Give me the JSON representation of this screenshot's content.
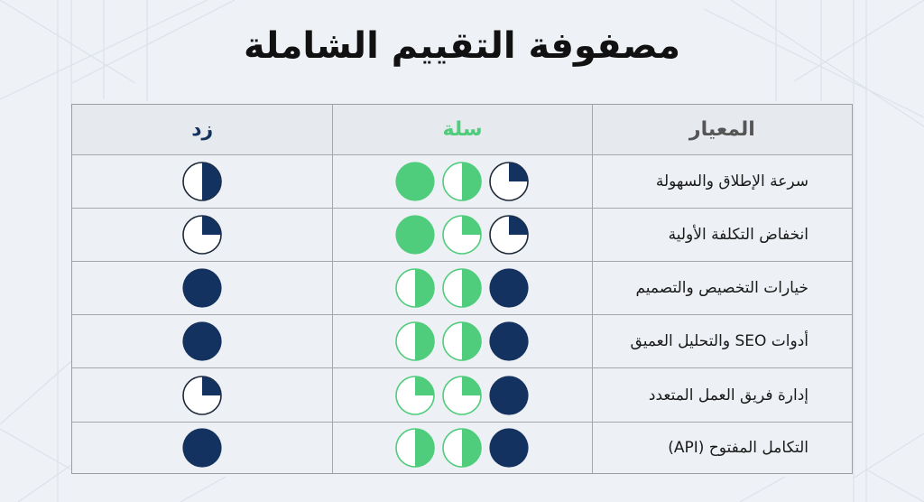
{
  "title": "مصفوفة التقييم الشاملة",
  "colors": {
    "salla_green": "#4fcc7c",
    "zid_navy": "#14325f",
    "criterion_header": "#555555",
    "title": "#111111",
    "background": "#eef1f5"
  },
  "table": {
    "headers": {
      "criterion": "المعيار",
      "salla": "سلة",
      "zid": "زد"
    },
    "rows": [
      {
        "criterion": "سرعة الإطلاق والسهولة"
      },
      {
        "criterion": "انخفاض التكلفة الأولية"
      },
      {
        "criterion": "خيارات التخصيص والتصميم"
      },
      {
        "criterion": "أدوات SEO والتحليل العميق"
      },
      {
        "criterion": "إدارة فريق العمل المتعدد"
      },
      {
        "criterion": "التكامل المفتوح (API)"
      }
    ]
  },
  "chart_data": {
    "type": "table",
    "title": "مصفوفة التقييم الشاملة",
    "legend": "Harvey balls: fill fraction 0–1 (0.25 = quarter, 0.5 = half, 1 = full)",
    "columns": [
      "المعيار",
      "سلة",
      "زد"
    ],
    "categories": [
      "سرعة الإطلاق والسهولة",
      "انخفاض التكلفة الأولية",
      "خيارات التخصيص والتصميم",
      "أدوات SEO والتحليل العميق",
      "إدارة فريق العمل المتعدد",
      "التكامل المفتوح (API)"
    ],
    "series": [
      {
        "name": "سلة",
        "color": "#4fcc7c",
        "note": "three balls per row, listed right-to-left as displayed; first is navy (comparison), remaining two green",
        "values": [
          [
            {
              "fill": 0.25,
              "color": "navy"
            },
            {
              "fill": 0.5,
              "color": "green"
            },
            {
              "fill": 1,
              "color": "green"
            }
          ],
          [
            {
              "fill": 0.25,
              "color": "navy"
            },
            {
              "fill": 0.25,
              "color": "green"
            },
            {
              "fill": 1,
              "color": "green"
            }
          ],
          [
            {
              "fill": 1,
              "color": "navy"
            },
            {
              "fill": 0.5,
              "color": "green"
            },
            {
              "fill": 0.5,
              "color": "green"
            }
          ],
          [
            {
              "fill": 1,
              "color": "navy"
            },
            {
              "fill": 0.5,
              "color": "green"
            },
            {
              "fill": 0.5,
              "color": "green"
            }
          ],
          [
            {
              "fill": 1,
              "color": "navy"
            },
            {
              "fill": 0.25,
              "color": "green"
            },
            {
              "fill": 0.25,
              "color": "green"
            }
          ],
          [
            {
              "fill": 1,
              "color": "navy"
            },
            {
              "fill": 0.5,
              "color": "green"
            },
            {
              "fill": 0.5,
              "color": "green"
            }
          ]
        ]
      },
      {
        "name": "زد",
        "color": "#14325f",
        "values": [
          0.5,
          0.25,
          1,
          1,
          0.25,
          1
        ]
      }
    ]
  }
}
